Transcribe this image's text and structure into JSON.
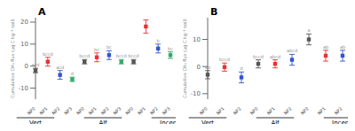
{
  "chart_data": [
    {
      "type": "scatter",
      "title": "A",
      "y_label": "Cumulative CH₄ flux (μg C kg⁻¹ soil)",
      "ylim": [
        -15,
        22
      ],
      "yticks": [
        -10,
        0,
        10,
        20
      ],
      "categories": [
        "Vert",
        "Alf",
        "Incepti"
      ],
      "series": [
        {
          "name": "NP0",
          "color": "#555555",
          "marker": "square",
          "values": [
            -2.0,
            2.0,
            2.0
          ],
          "errors": [
            1.0,
            1.0,
            1.0
          ],
          "annotations": [
            "acd",
            "bccd",
            "bccd"
          ]
        },
        {
          "name": "NP1",
          "color": "#e63333",
          "marker": "square",
          "values": [
            2.0,
            4.0,
            18.0
          ],
          "errors": [
            2.0,
            2.0,
            3.0
          ],
          "annotations": [
            "bccd",
            "bc",
            "a"
          ]
        },
        {
          "name": "NP2",
          "color": "#3355cc",
          "marker": "square",
          "values": [
            -4.0,
            5.0,
            8.0
          ],
          "errors": [
            2.0,
            2.0,
            2.0
          ],
          "annotations": [
            "acd",
            "bc",
            "b"
          ]
        },
        {
          "name": "NP3",
          "color": "#33aa66",
          "marker": "square",
          "values": [
            -6.0,
            2.0,
            5.0
          ],
          "errors": [
            1.0,
            1.0,
            1.5
          ],
          "annotations": [
            "d",
            "bccd",
            "bc"
          ]
        }
      ]
    },
    {
      "type": "scatter",
      "title": "B",
      "y_label": "Cumulative CH₄ flux (μg C kg⁻¹ soil)",
      "ylim": [
        -12,
        18
      ],
      "yticks": [
        -10,
        0,
        10
      ],
      "categories": [
        "Vert",
        "Alf",
        "Incepti"
      ],
      "series": [
        {
          "name": "NP0",
          "color": "#555555",
          "marker": "square",
          "values": [
            -3.0,
            1.0,
            10.0
          ],
          "errors": [
            1.5,
            1.5,
            2.0
          ],
          "annotations": [
            "ab",
            "bccd",
            "a"
          ]
        },
        {
          "name": "NP1",
          "color": "#e63333",
          "marker": "square",
          "values": [
            -0.2,
            1.0,
            4.0
          ],
          "errors": [
            1.5,
            1.5,
            2.0
          ],
          "annotations": [
            "bccd",
            "abcd",
            "ab"
          ]
        },
        {
          "name": "NP2",
          "color": "#3355cc",
          "marker": "square",
          "values": [
            -4.0,
            2.5,
            4.0
          ],
          "errors": [
            2.0,
            2.0,
            2.0
          ],
          "annotations": [
            "d",
            "abcd",
            "ab"
          ]
        }
      ]
    }
  ]
}
